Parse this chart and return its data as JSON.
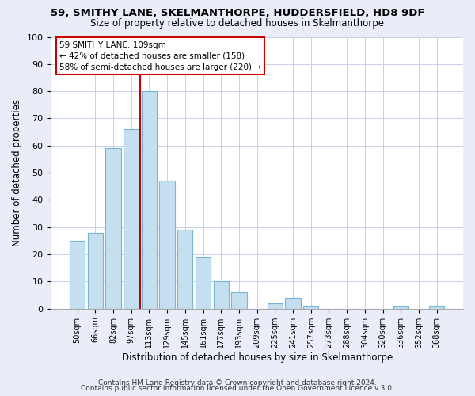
{
  "title1": "59, SMITHY LANE, SKELMANTHORPE, HUDDERSFIELD, HD8 9DF",
  "title2": "Size of property relative to detached houses in Skelmanthorpe",
  "xlabel": "Distribution of detached houses by size in Skelmanthorpe",
  "ylabel": "Number of detached properties",
  "footnote1": "Contains HM Land Registry data © Crown copyright and database right 2024.",
  "footnote2": "Contains public sector information licensed under the Open Government Licence v.3.0.",
  "bar_labels": [
    "50sqm",
    "66sqm",
    "82sqm",
    "97sqm",
    "113sqm",
    "129sqm",
    "145sqm",
    "161sqm",
    "177sqm",
    "193sqm",
    "209sqm",
    "225sqm",
    "241sqm",
    "257sqm",
    "273sqm",
    "288sqm",
    "304sqm",
    "320sqm",
    "336sqm",
    "352sqm",
    "368sqm"
  ],
  "bar_values": [
    25,
    28,
    59,
    66,
    80,
    47,
    29,
    19,
    10,
    6,
    0,
    2,
    4,
    1,
    0,
    0,
    0,
    0,
    1,
    0,
    1
  ],
  "bar_color": "#c5dff0",
  "bar_edge_color": "#7ab4d4",
  "reference_line_index": 4,
  "reference_line_color": "#cc0000",
  "annotation_line1": "59 SMITHY LANE: 109sqm",
  "annotation_line2": "← 42% of detached houses are smaller (158)",
  "annotation_line3": "58% of semi-detached houses are larger (220) →",
  "ylim": [
    0,
    100
  ],
  "yticks": [
    0,
    10,
    20,
    30,
    40,
    50,
    60,
    70,
    80,
    90,
    100
  ],
  "bg_color": "#e8edf8",
  "plot_bg_color": "#ffffff",
  "grid_color": "#c8d0e8"
}
